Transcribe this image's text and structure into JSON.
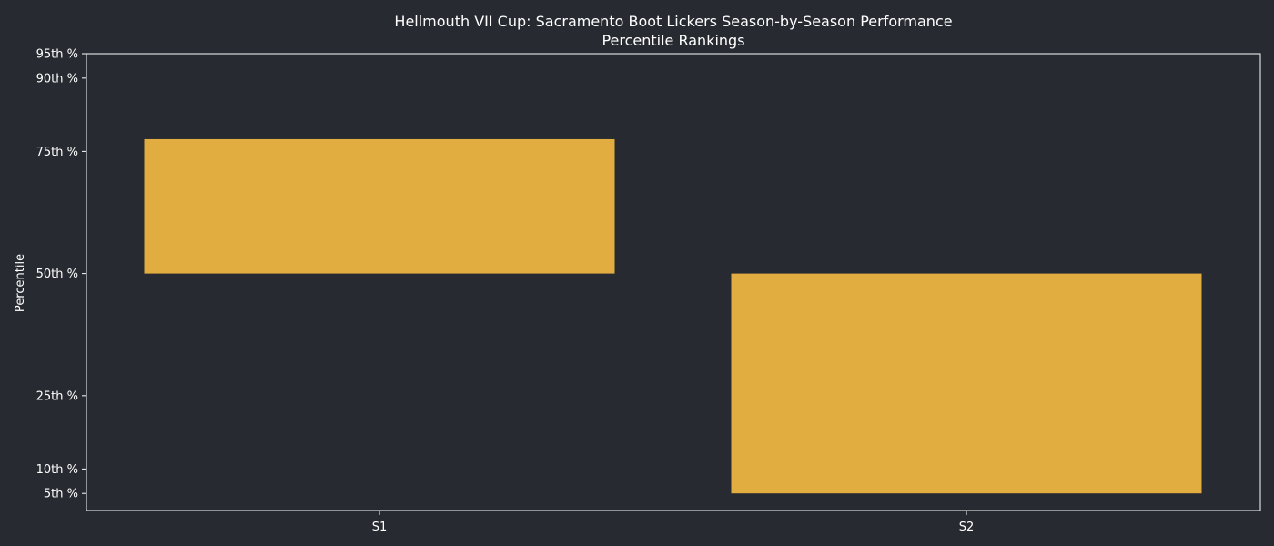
{
  "chart_data": {
    "type": "bar",
    "title_lines": [
      "Hellmouth VII Cup: Sacramento Boot Lickers Season-by-Season Performance",
      "Percentile Rankings"
    ],
    "xlabel": "",
    "ylabel": "Percentile",
    "categories": [
      "S1",
      "S2"
    ],
    "bars": [
      {
        "category": "S1",
        "bottom": 50,
        "top": 77.5
      },
      {
        "category": "S2",
        "bottom": 5,
        "top": 50
      }
    ],
    "ylim": [
      1.5,
      95
    ],
    "y_ticks": [
      {
        "value": 5,
        "label": "5th %"
      },
      {
        "value": 10,
        "label": "10th %"
      },
      {
        "value": 25,
        "label": "25th %"
      },
      {
        "value": 50,
        "label": "50th %"
      },
      {
        "value": 75,
        "label": "75th %"
      },
      {
        "value": 90,
        "label": "90th %"
      },
      {
        "value": 95,
        "label": "95th %"
      }
    ],
    "bar_color": "#e2ad40",
    "background_color": "#272a30",
    "text_color": "#ffffff",
    "grid": false,
    "legend": "none"
  }
}
